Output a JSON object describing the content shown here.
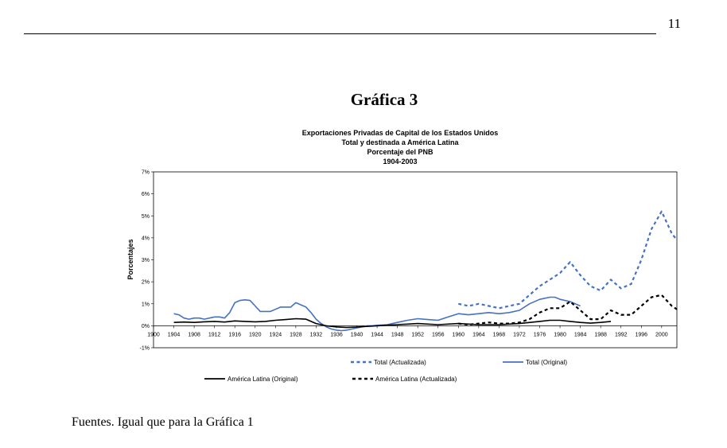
{
  "page": {
    "number": "11",
    "figure_title": "Gráfica 3",
    "sources": "Fuentes. Igual que para la Gráfica 1"
  },
  "chart_data": {
    "type": "line",
    "title_lines": [
      "Exportaciones Privadas de Capital de los Estados Unidos",
      "Total y destinada a América Latina",
      "Porcentaje del PNB",
      "1904-2003"
    ],
    "ylabel": "Porcentajes",
    "xlabel": "",
    "xlim": [
      1900,
      2003
    ],
    "ylim": [
      -1,
      7
    ],
    "yticks": [
      -1,
      0,
      1,
      2,
      3,
      4,
      5,
      6,
      7
    ],
    "ytick_labels": [
      "-1%",
      "0%",
      "1%",
      "2%",
      "3%",
      "4%",
      "5%",
      "6%",
      "7%"
    ],
    "xticks": [
      1900,
      1904,
      1908,
      1912,
      1916,
      1920,
      1924,
      1928,
      1932,
      1936,
      1940,
      1944,
      1948,
      1952,
      1956,
      1960,
      1964,
      1968,
      1972,
      1976,
      1980,
      1984,
      1988,
      1992,
      1996,
      2000
    ],
    "grid": false,
    "legend": [
      "Total (Actualizada)",
      "Total (Original)",
      "América Latina (Original)",
      "América Latina  (Actualizada)"
    ],
    "series": [
      {
        "name": "Total (Actualizada)",
        "color": "#4472C4",
        "style": "dashed",
        "x": [
          1960,
          1962,
          1964,
          1966,
          1968,
          1970,
          1972,
          1974,
          1976,
          1978,
          1980,
          1982,
          1984,
          1986,
          1988,
          1990,
          1992,
          1994,
          1996,
          1998,
          2000,
          2002,
          2003
        ],
        "y": [
          1.0,
          0.9,
          1.0,
          0.9,
          0.8,
          0.9,
          1.0,
          1.4,
          1.8,
          2.1,
          2.4,
          2.9,
          2.3,
          1.8,
          1.6,
          2.1,
          1.7,
          1.9,
          3.0,
          4.4,
          5.2,
          4.2,
          3.9
        ]
      },
      {
        "name": "Total (Original)",
        "color": "#4472C4",
        "style": "solid",
        "x": [
          1904,
          1905,
          1906,
          1907,
          1908,
          1909,
          1910,
          1911,
          1912,
          1913,
          1914,
          1915,
          1916,
          1917,
          1918,
          1919,
          1920,
          1921,
          1922,
          1923,
          1924,
          1925,
          1926,
          1927,
          1928,
          1929,
          1930,
          1931,
          1932,
          1933,
          1934,
          1935,
          1936,
          1937,
          1938,
          1939,
          1940,
          1941,
          1942,
          1943,
          1944,
          1946,
          1948,
          1950,
          1952,
          1954,
          1956,
          1958,
          1960,
          1962,
          1964,
          1966,
          1968,
          1970,
          1972,
          1974,
          1976,
          1978,
          1979,
          1980,
          1982,
          1984
        ],
        "y": [
          0.55,
          0.5,
          0.35,
          0.3,
          0.35,
          0.35,
          0.3,
          0.35,
          0.4,
          0.4,
          0.35,
          0.6,
          1.05,
          1.15,
          1.18,
          1.15,
          0.9,
          0.65,
          0.65,
          0.65,
          0.75,
          0.85,
          0.85,
          0.85,
          1.05,
          0.95,
          0.85,
          0.6,
          0.3,
          0.1,
          -0.05,
          -0.15,
          -0.2,
          -0.22,
          -0.2,
          -0.15,
          -0.1,
          -0.05,
          0.0,
          0.0,
          0.02,
          0.05,
          0.15,
          0.25,
          0.32,
          0.28,
          0.25,
          0.4,
          0.55,
          0.5,
          0.55,
          0.6,
          0.55,
          0.6,
          0.7,
          1.0,
          1.2,
          1.3,
          1.3,
          1.2,
          1.1,
          0.9
        ]
      },
      {
        "name": "América Latina (Original)",
        "color": "#000000",
        "style": "solid",
        "x": [
          1904,
          1906,
          1908,
          1910,
          1912,
          1914,
          1916,
          1918,
          1920,
          1922,
          1924,
          1926,
          1928,
          1930,
          1932,
          1934,
          1936,
          1938,
          1940,
          1942,
          1944,
          1948,
          1952,
          1956,
          1960,
          1964,
          1968,
          1972,
          1976,
          1978,
          1980,
          1982,
          1984,
          1986,
          1988,
          1990
        ],
        "y": [
          0.15,
          0.17,
          0.15,
          0.18,
          0.2,
          0.17,
          0.22,
          0.2,
          0.18,
          0.2,
          0.25,
          0.28,
          0.32,
          0.3,
          0.1,
          0.0,
          -0.05,
          -0.08,
          -0.06,
          -0.03,
          0.0,
          0.05,
          0.1,
          0.05,
          0.1,
          0.05,
          0.05,
          0.1,
          0.2,
          0.25,
          0.25,
          0.2,
          0.15,
          0.12,
          0.15,
          0.2
        ]
      },
      {
        "name": "América Latina  (Actualizada)",
        "color": "#000000",
        "style": "dashed",
        "x": [
          1960,
          1962,
          1964,
          1966,
          1968,
          1970,
          1972,
          1974,
          1976,
          1978,
          1980,
          1982,
          1984,
          1986,
          1988,
          1990,
          1992,
          1994,
          1996,
          1998,
          2000,
          2002,
          2003
        ],
        "y": [
          0.1,
          0.05,
          0.1,
          0.15,
          0.1,
          0.1,
          0.15,
          0.3,
          0.6,
          0.8,
          0.8,
          1.1,
          0.7,
          0.3,
          0.3,
          0.7,
          0.5,
          0.5,
          0.9,
          1.3,
          1.4,
          0.9,
          0.75
        ]
      }
    ]
  }
}
